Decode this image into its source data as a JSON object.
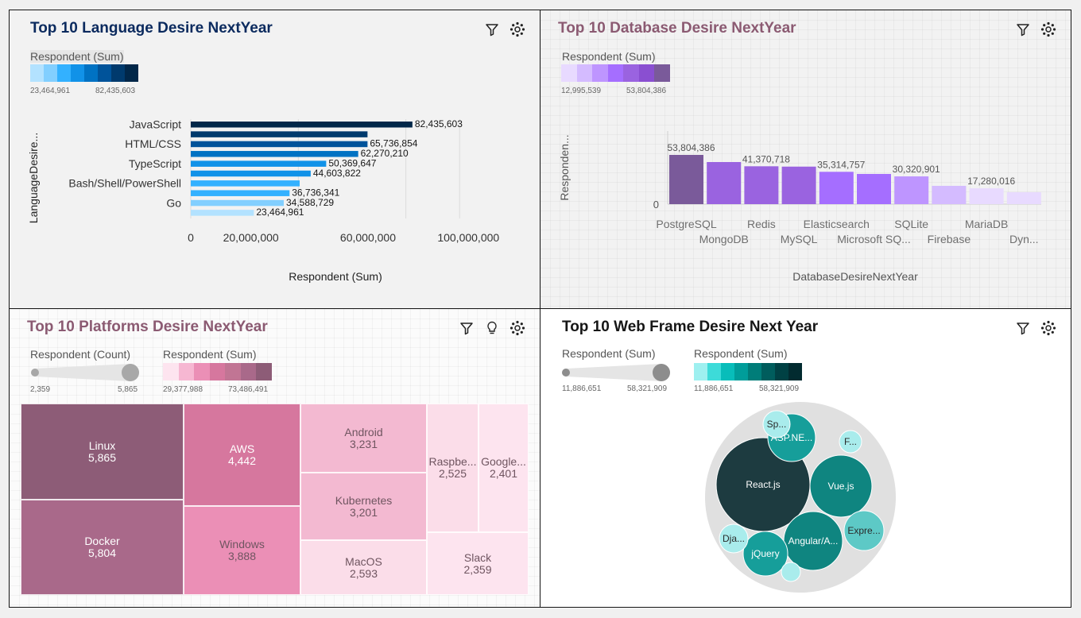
{
  "charts": {
    "language": {
      "title": "Top 10 Language Desire NextYear",
      "legend_title": "Respondent (Sum)",
      "legend_min": "23,464,961",
      "legend_max": "82,435,603",
      "legend_colors": [
        "#b3e2ff",
        "#82cfff",
        "#33b1ff",
        "#1192e8",
        "#0072c3",
        "#00539a",
        "#003a6d",
        "#012749"
      ]
    },
    "database": {
      "title": "Top 10 Database Desire NextYear",
      "legend_title": "Respondent (Sum)",
      "legend_min": "12,995,539",
      "legend_max": "53,804,386",
      "legend_colors": [
        "#e8daff",
        "#d4bbff",
        "#be95ff",
        "#a56eff",
        "#9a63e0",
        "#8a4fd1",
        "#7a5a9a"
      ]
    },
    "platforms": {
      "title": "Top 10 Platforms Desire NextYear",
      "size_legend_title": "Respondent (Count)",
      "size_min": "2,359",
      "size_max": "5,865",
      "color_legend_title": "Respondent (Sum)",
      "color_min": "29,377,988",
      "color_max": "73,486,491",
      "legend_colors": [
        "#fde4ef",
        "#f6b7d2",
        "#eb8fb6",
        "#d6779e",
        "#c17594",
        "#a9698a",
        "#8d5c77"
      ]
    },
    "webframe": {
      "title": "Top 10 Web Frame Desire Next Year",
      "size_legend_title": "Respondent (Sum)",
      "size_min": "11,886,651",
      "size_max": "58,321,909",
      "color_legend_title": "Respondent (Sum)",
      "color_min": "11,886,651",
      "color_max": "58,321,909",
      "legend_colors": [
        "#9ef0f0",
        "#3ddbd9",
        "#08bdba",
        "#009d9a",
        "#007d79",
        "#005d5d",
        "#004144",
        "#022b30"
      ]
    }
  },
  "chart_data": [
    {
      "type": "bar",
      "orientation": "horizontal",
      "title": "Top 10 Language Desire NextYear",
      "xlabel": "Respondent (Sum)",
      "ylabel": "LanguageDesire...",
      "categories": [
        "JavaScript",
        "",
        "HTML/CSS",
        "",
        "TypeScript",
        "",
        "Bash/Shell/PowerShell",
        "",
        "Go",
        ""
      ],
      "values": [
        82435603,
        65736854,
        65736854,
        62270210,
        50369647,
        44603822,
        40500000,
        36736341,
        34588729,
        23464961
      ],
      "value_labels": [
        "82,435,603",
        "",
        "65,736,854",
        "62,270,210",
        "50,369,647",
        "44,603,822",
        "",
        "36,736,341",
        "34,588,729",
        "23,464,961"
      ],
      "colors": [
        "#012749",
        "#003a6d",
        "#00539a",
        "#0072c3",
        "#1192e8",
        "#1192e8",
        "#33b1ff",
        "#33b1ff",
        "#82cfff",
        "#b3e2ff"
      ],
      "xticks": [
        "0",
        "20,000,000",
        "60,000,000",
        "100,000,000"
      ],
      "xlim": [
        0,
        115000000
      ]
    },
    {
      "type": "bar",
      "title": "Top 10 Database Desire NextYear",
      "xlabel": "DatabaseDesireNextYear",
      "ylabel": "Responden...",
      "categories": [
        "PostgreSQL",
        "MongoDB",
        "Redis",
        "MySQL",
        "Elasticsearch",
        "Microsoft SQ...",
        "SQLite",
        "Firebase",
        "MariaDB",
        "Dyn..."
      ],
      "values": [
        53804386,
        46000000,
        41370718,
        41000000,
        35314757,
        33000000,
        30320901,
        20000000,
        17280016,
        12995539
      ],
      "value_labels": [
        "53,804,386",
        "",
        "41,370,718",
        "",
        "35,314,757",
        "",
        "30,320,901",
        "",
        "17,280,016",
        ""
      ],
      "colors": [
        "#7a5a9a",
        "#9a63e0",
        "#9a63e0",
        "#9a63e0",
        "#a56eff",
        "#a56eff",
        "#be95ff",
        "#d4bbff",
        "#e8daff",
        "#e8daff"
      ],
      "yticks": [
        "0"
      ],
      "ylim": [
        0,
        60000000
      ]
    },
    {
      "type": "treemap",
      "title": "Top 10 Platforms Desire NextYear",
      "cells": [
        {
          "label": "Linux",
          "value": "5,865",
          "color": "#8d5c77",
          "text_color": "#ffffff"
        },
        {
          "label": "Docker",
          "value": "5,804",
          "color": "#a9698a",
          "text_color": "#ffffff"
        },
        {
          "label": "AWS",
          "value": "4,442",
          "color": "#d6779e",
          "text_color": "#ffffff"
        },
        {
          "label": "Windows",
          "value": "3,888",
          "color": "#eb8fb6",
          "text_color": "#6f5560"
        },
        {
          "label": "Android",
          "value": "3,231",
          "color": "#f3b9d1",
          "text_color": "#6f5560"
        },
        {
          "label": "Kubernetes",
          "value": "3,201",
          "color": "#f3b9d1",
          "text_color": "#6f5560"
        },
        {
          "label": "MacOS",
          "value": "2,593",
          "color": "#fbdde9",
          "text_color": "#6f5560"
        },
        {
          "label": "Raspbe...",
          "value": "2,525",
          "color": "#fbdde9",
          "text_color": "#6f5560"
        },
        {
          "label": "Google...",
          "value": "2,401",
          "color": "#fde4ef",
          "text_color": "#6f5560"
        },
        {
          "label": "Slack",
          "value": "2,359",
          "color": "#fde4ef",
          "text_color": "#6f5560"
        }
      ]
    },
    {
      "type": "bubble",
      "title": "Top 10 Web Frame Desire Next Year",
      "bubbles": [
        {
          "label": "React.js",
          "value": 58321909,
          "color": "#1d3b40",
          "text_color": "#ffffff"
        },
        {
          "label": "Vue.js",
          "value": 35000000,
          "color": "#0f8580",
          "text_color": "#ffffff"
        },
        {
          "label": "Angular/A...",
          "value": 32000000,
          "color": "#0f8580",
          "text_color": "#ffffff"
        },
        {
          "label": "ASP.NE...",
          "value": 20000000,
          "color": "#169e9a",
          "text_color": "#ffffff"
        },
        {
          "label": "jQuery",
          "value": 18000000,
          "color": "#169e9a",
          "text_color": "#ffffff"
        },
        {
          "label": "Expre...",
          "value": 16000000,
          "color": "#5dc9c6",
          "text_color": "#2a2a2a"
        },
        {
          "label": "Sp...",
          "value": 12500000,
          "color": "#a9ecec",
          "text_color": "#2a2a2a"
        },
        {
          "label": "Dja...",
          "value": 12500000,
          "color": "#a9ecec",
          "text_color": "#2a2a2a"
        },
        {
          "label": "F...",
          "value": 11886651,
          "color": "#a9ecec",
          "text_color": "#2a2a2a"
        },
        {
          "label": "",
          "value": 9000000,
          "color": "#a9ecec",
          "text_color": "#2a2a2a"
        }
      ]
    }
  ]
}
